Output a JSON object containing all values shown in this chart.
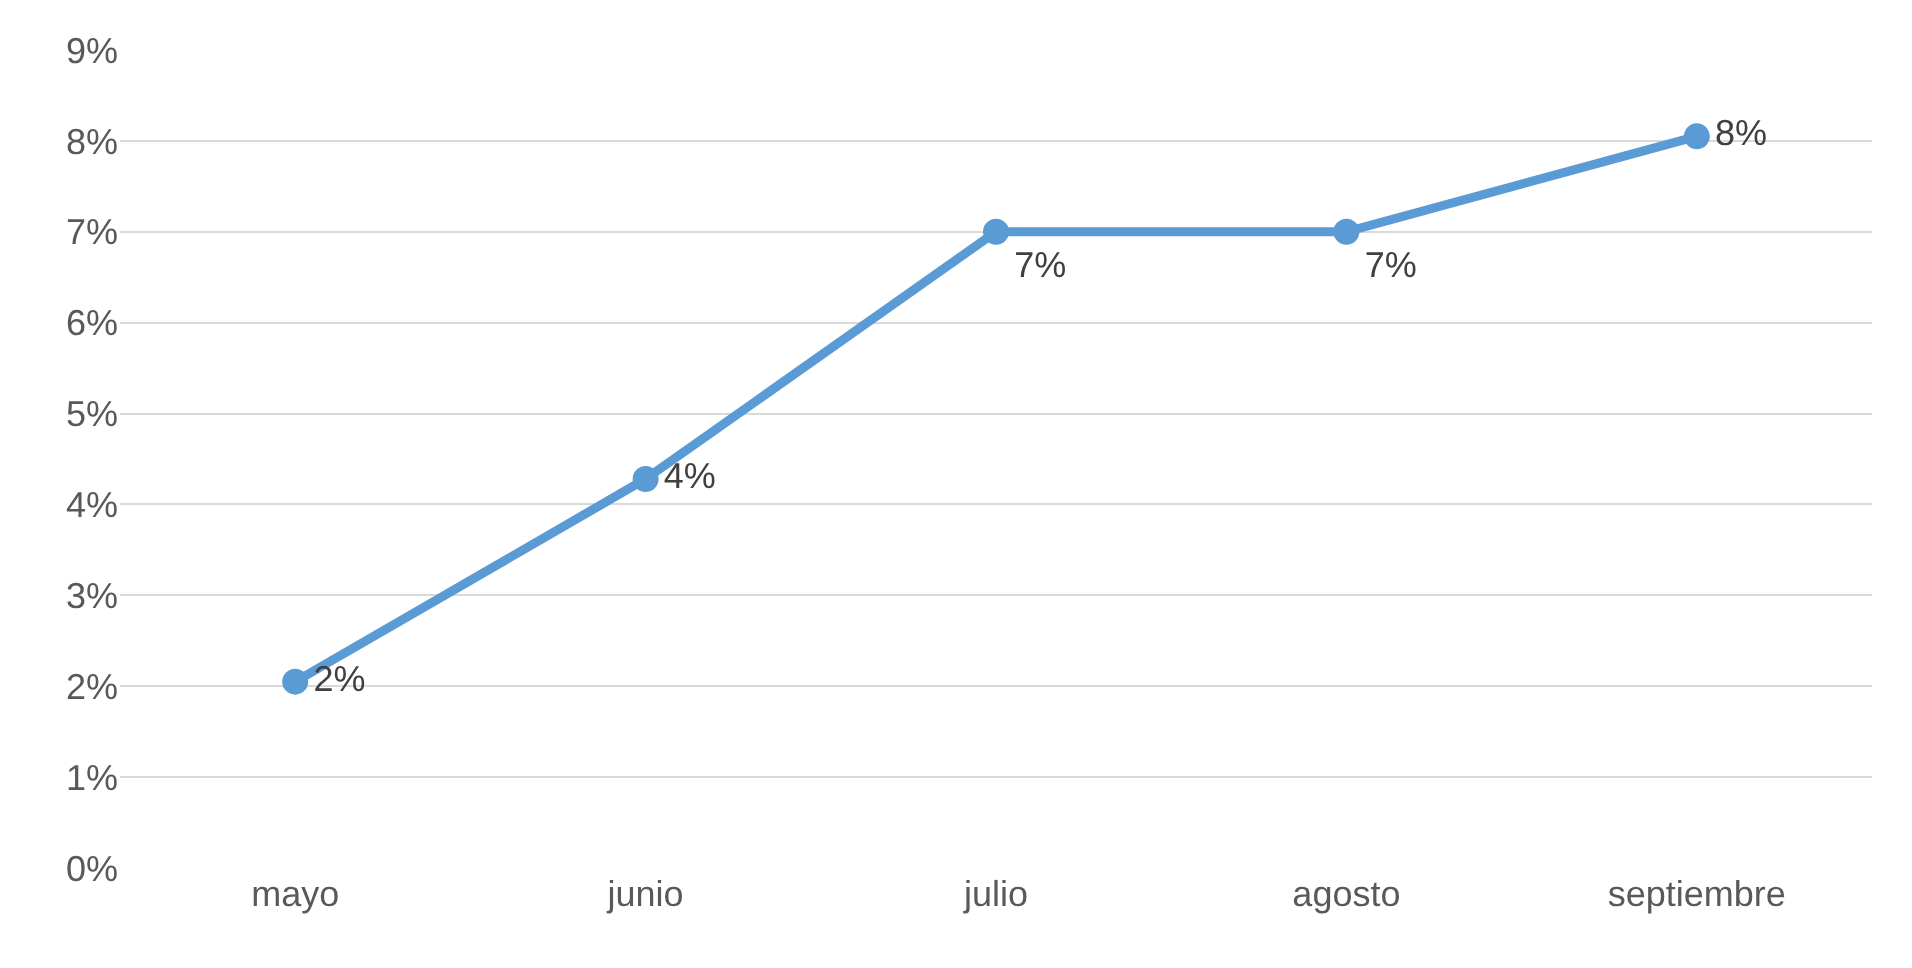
{
  "chart_data": {
    "type": "line",
    "categories": [
      "mayo",
      "junio",
      "julio",
      "agosto",
      "septiembre"
    ],
    "series": [
      {
        "color": "#5b9bd5",
        "values": [
          2.05,
          4.28,
          7.0,
          7.0,
          8.05
        ],
        "value_labels": [
          "2%",
          "4%",
          "7%",
          "7%",
          "8%"
        ]
      }
    ],
    "ylim": [
      0,
      9
    ],
    "yticks": [
      {
        "value": 0,
        "label": "0%"
      },
      {
        "value": 1,
        "label": "1%"
      },
      {
        "value": 2,
        "label": "2%"
      },
      {
        "value": 3,
        "label": "3%"
      },
      {
        "value": 4,
        "label": "4%"
      },
      {
        "value": 5,
        "label": "5%"
      },
      {
        "value": 6,
        "label": "6%"
      },
      {
        "value": 7,
        "label": "7%"
      },
      {
        "value": 8,
        "label": "8%"
      },
      {
        "value": 9,
        "label": "9%"
      }
    ],
    "grid": "y",
    "legend": false,
    "marker": "circle",
    "line_style": "solid"
  }
}
